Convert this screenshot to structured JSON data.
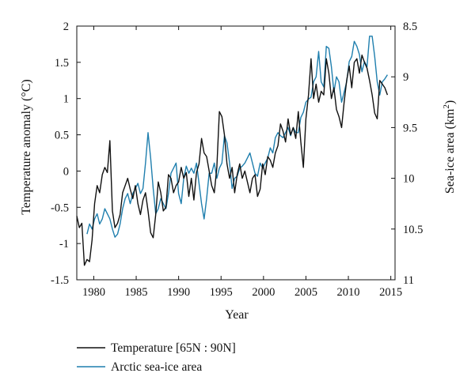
{
  "chart_data": {
    "type": "line",
    "xlabel": "Year",
    "ylabel_left": "Temperature anomaly (°C)",
    "ylabel_right_prefix": "Sea-ice area (km",
    "ylabel_right_sup": "2",
    "ylabel_right_suffix": ")",
    "xlim": [
      1978,
      2015.5
    ],
    "ylim_left": [
      -1.5,
      2
    ],
    "ylim_right": [
      11,
      8.5
    ],
    "right_axis_inverted": true,
    "x_ticks": [
      1980,
      1985,
      1990,
      1995,
      2000,
      2005,
      2010,
      2015
    ],
    "y_ticks_left": [
      -1.5,
      -1,
      -0.5,
      0,
      0.5,
      1,
      1.5,
      2
    ],
    "y_ticks_right": [
      8.5,
      9,
      9.5,
      10,
      10.5,
      11
    ],
    "legend_position": "bottom",
    "colors": {
      "temperature": "#111111",
      "sea_ice": "#1f7fae"
    },
    "series": [
      {
        "name": "Temperature [65N : 90N]",
        "axis": "left",
        "x": [
          1978.0,
          1978.3,
          1978.6,
          1978.9,
          1979.2,
          1979.5,
          1979.8,
          1980.1,
          1980.4,
          1980.7,
          1981.0,
          1981.3,
          1981.6,
          1981.9,
          1982.2,
          1982.5,
          1982.8,
          1983.1,
          1983.4,
          1983.7,
          1984.0,
          1984.3,
          1984.6,
          1984.9,
          1985.2,
          1985.5,
          1985.8,
          1986.1,
          1986.4,
          1986.7,
          1987.0,
          1987.3,
          1987.6,
          1987.9,
          1988.2,
          1988.5,
          1988.8,
          1989.1,
          1989.4,
          1989.7,
          1990.0,
          1990.3,
          1990.6,
          1990.9,
          1991.2,
          1991.5,
          1991.8,
          1992.1,
          1992.4,
          1992.7,
          1993.0,
          1993.3,
          1993.6,
          1993.9,
          1994.2,
          1994.5,
          1994.8,
          1995.1,
          1995.4,
          1995.7,
          1996.0,
          1996.3,
          1996.6,
          1996.9,
          1997.2,
          1997.5,
          1997.8,
          1998.1,
          1998.4,
          1998.7,
          1999.0,
          1999.3,
          1999.6,
          1999.9,
          2000.2,
          2000.5,
          2000.8,
          2001.1,
          2001.4,
          2001.7,
          2002.0,
          2002.3,
          2002.6,
          2002.9,
          2003.2,
          2003.5,
          2003.8,
          2004.1,
          2004.4,
          2004.7,
          2005.0,
          2005.3,
          2005.6,
          2005.9,
          2006.2,
          2006.5,
          2006.8,
          2007.1,
          2007.4,
          2007.7,
          2008.0,
          2008.3,
          2008.6,
          2008.9,
          2009.2,
          2009.5,
          2009.8,
          2010.1,
          2010.4,
          2010.7,
          2011.0,
          2011.3,
          2011.6,
          2011.9,
          2012.2,
          2012.5,
          2012.8,
          2013.1,
          2013.4,
          2013.7,
          2014.0,
          2014.3,
          2014.6
        ],
        "values": [
          -0.62,
          -0.78,
          -0.72,
          -1.3,
          -1.22,
          -1.25,
          -0.95,
          -0.45,
          -0.2,
          -0.3,
          -0.05,
          0.05,
          -0.02,
          0.42,
          -0.55,
          -0.78,
          -0.72,
          -0.6,
          -0.3,
          -0.2,
          -0.1,
          -0.25,
          -0.38,
          -0.2,
          -0.45,
          -0.6,
          -0.4,
          -0.3,
          -0.55,
          -0.85,
          -0.92,
          -0.6,
          -0.15,
          -0.3,
          -0.55,
          -0.5,
          -0.05,
          -0.1,
          -0.3,
          -0.2,
          -0.15,
          0.05,
          -0.1,
          -0.02,
          -0.35,
          -0.1,
          -0.4,
          -0.02,
          0.1,
          0.45,
          0.25,
          0.2,
          0.0,
          -0.2,
          -0.3,
          0.05,
          0.82,
          0.75,
          0.5,
          0.1,
          -0.1,
          0.05,
          -0.3,
          -0.05,
          0.1,
          -0.1,
          0.0,
          -0.15,
          -0.3,
          -0.1,
          -0.05,
          -0.35,
          -0.25,
          0.1,
          -0.05,
          0.2,
          0.15,
          0.05,
          0.25,
          0.35,
          0.65,
          0.55,
          0.4,
          0.72,
          0.5,
          0.6,
          0.45,
          0.82,
          0.4,
          0.05,
          0.72,
          1.05,
          1.55,
          1.0,
          1.2,
          0.95,
          1.1,
          1.05,
          1.55,
          1.35,
          1.0,
          1.15,
          0.85,
          0.75,
          0.6,
          0.95,
          1.25,
          1.45,
          1.15,
          1.5,
          1.55,
          1.35,
          1.6,
          1.5,
          1.42,
          1.25,
          1.05,
          0.8,
          0.72,
          1.25,
          1.2,
          1.15,
          1.05
        ]
      },
      {
        "name": "Arctic sea-ice area",
        "axis": "right",
        "x": [
          1979.2,
          1979.5,
          1979.8,
          1980.1,
          1980.4,
          1980.7,
          1981.0,
          1981.3,
          1981.6,
          1981.9,
          1982.2,
          1982.5,
          1982.8,
          1983.1,
          1983.4,
          1983.7,
          1984.0,
          1984.3,
          1984.6,
          1984.9,
          1985.2,
          1985.5,
          1985.8,
          1986.1,
          1986.4,
          1986.7,
          1987.0,
          1987.3,
          1987.6,
          1987.9,
          1988.2,
          1988.5,
          1988.8,
          1989.1,
          1989.4,
          1989.7,
          1990.0,
          1990.3,
          1990.6,
          1990.9,
          1991.2,
          1991.5,
          1991.8,
          1992.1,
          1992.4,
          1992.7,
          1993.0,
          1993.3,
          1993.6,
          1993.9,
          1994.2,
          1994.5,
          1994.8,
          1995.1,
          1995.4,
          1995.7,
          1996.0,
          1996.3,
          1996.6,
          1996.9,
          1997.2,
          1997.5,
          1997.8,
          1998.1,
          1998.4,
          1998.7,
          1999.0,
          1999.3,
          1999.6,
          1999.9,
          2000.2,
          2000.5,
          2000.8,
          2001.1,
          2001.4,
          2001.7,
          2002.0,
          2002.3,
          2002.6,
          2002.9,
          2003.2,
          2003.5,
          2003.8,
          2004.1,
          2004.4,
          2004.7,
          2005.0,
          2005.3,
          2005.6,
          2005.9,
          2006.2,
          2006.5,
          2006.8,
          2007.1,
          2007.4,
          2007.7,
          2008.0,
          2008.3,
          2008.6,
          2008.9,
          2009.2,
          2009.5,
          2009.8,
          2010.1,
          2010.4,
          2010.7,
          2011.0,
          2011.3,
          2011.6,
          2011.9,
          2012.2,
          2012.5,
          2012.8,
          2013.1,
          2013.4,
          2013.7,
          2014.0,
          2014.3,
          2014.6
        ],
        "values": [
          10.55,
          10.45,
          10.5,
          10.4,
          10.35,
          10.45,
          10.4,
          10.3,
          10.35,
          10.4,
          10.5,
          10.58,
          10.55,
          10.45,
          10.3,
          10.2,
          10.15,
          10.25,
          10.15,
          10.1,
          10.05,
          10.15,
          10.1,
          9.85,
          9.55,
          9.8,
          10.1,
          10.35,
          10.3,
          10.2,
          10.25,
          10.3,
          10.15,
          9.95,
          9.9,
          9.85,
          10.15,
          10.25,
          10.0,
          9.88,
          9.95,
          9.9,
          9.95,
          9.85,
          10.05,
          10.25,
          10.4,
          10.2,
          9.95,
          9.95,
          9.85,
          10.0,
          9.9,
          9.85,
          9.58,
          9.65,
          9.85,
          10.1,
          10.0,
          9.98,
          9.9,
          9.88,
          9.85,
          9.8,
          9.75,
          9.85,
          9.95,
          9.98,
          9.85,
          9.9,
          9.85,
          9.8,
          9.7,
          9.75,
          9.6,
          9.55,
          9.58,
          9.6,
          9.55,
          9.5,
          9.58,
          9.5,
          9.55,
          9.55,
          9.4,
          9.35,
          9.25,
          9.22,
          9.2,
          9.05,
          9.0,
          8.75,
          9.05,
          9.1,
          8.7,
          8.72,
          8.9,
          9.15,
          9.0,
          9.05,
          9.25,
          9.15,
          9.05,
          8.85,
          8.8,
          8.65,
          8.7,
          8.78,
          8.95,
          8.85,
          8.9,
          8.6,
          8.6,
          8.8,
          9.05,
          9.18,
          9.05,
          9.02,
          8.98
        ]
      }
    ]
  }
}
